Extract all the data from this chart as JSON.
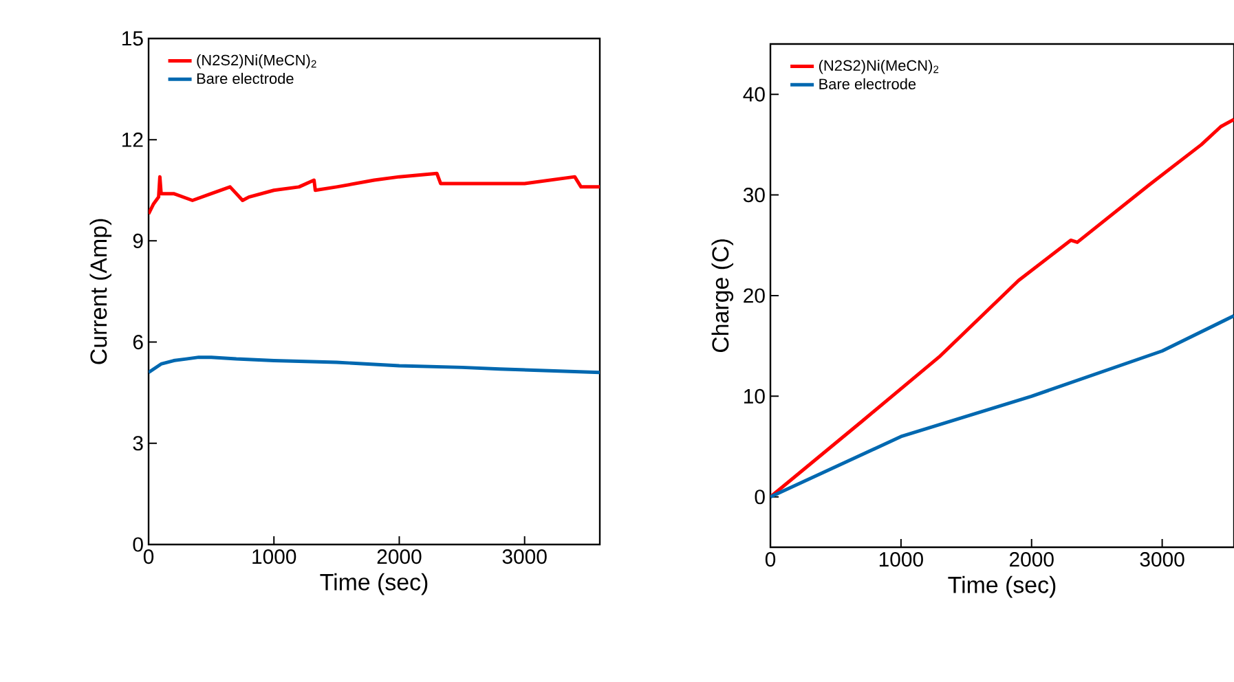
{
  "chart_data": [
    {
      "type": "line",
      "xlabel": "Time (sec)",
      "ylabel": "Current (Amp)",
      "xlim": [
        0,
        3600
      ],
      "ylim": [
        0,
        15
      ],
      "xticks": [
        0,
        1000,
        2000,
        3000
      ],
      "yticks": [
        0,
        3,
        6,
        9,
        12,
        15
      ],
      "legend": "top left",
      "series": [
        {
          "name": "(N2S2)Ni(MeCN)$_{2}$",
          "color": "#ff0000",
          "x": [
            0,
            40,
            80,
            90,
            100,
            200,
            350,
            500,
            650,
            700,
            750,
            800,
            1000,
            1200,
            1320,
            1330,
            1500,
            1800,
            2000,
            2300,
            2330,
            2600,
            3000,
            3200,
            3400,
            3450,
            3600
          ],
          "values": [
            9.8,
            10.1,
            10.3,
            10.9,
            10.4,
            10.4,
            10.2,
            10.4,
            10.6,
            10.4,
            10.2,
            10.3,
            10.5,
            10.6,
            10.8,
            10.5,
            10.6,
            10.8,
            10.9,
            11.0,
            10.7,
            10.7,
            10.7,
            10.8,
            10.9,
            10.6,
            10.6
          ]
        },
        {
          "name": "Bare electrode",
          "color": "#0068b0",
          "x": [
            0,
            100,
            200,
            300,
            400,
            500,
            700,
            1000,
            1500,
            2000,
            2500,
            2800,
            3200,
            3600
          ],
          "values": [
            5.1,
            5.35,
            5.45,
            5.5,
            5.55,
            5.55,
            5.5,
            5.45,
            5.4,
            5.3,
            5.25,
            5.2,
            5.15,
            5.1
          ]
        }
      ]
    },
    {
      "type": "line",
      "xlabel": "Time (sec)",
      "ylabel": "Charge (C)",
      "xlim": [
        0,
        3550
      ],
      "ylim": [
        -5,
        45
      ],
      "xticks": [
        0,
        1000,
        2000,
        3000
      ],
      "yticks": [
        0,
        10,
        20,
        30,
        40
      ],
      "legend": "top left",
      "series": [
        {
          "name": "(N2S2)Ni(MeCN)$_{2}$",
          "color": "#ff0000",
          "x": [
            0,
            700,
            1300,
            1900,
            2300,
            2350,
            2900,
            3300,
            3450,
            3550
          ],
          "values": [
            0,
            7.5,
            14,
            21.5,
            25.5,
            25.3,
            31,
            35,
            36.8,
            37.5
          ]
        },
        {
          "name": "Bare electrode",
          "color": "#0068b0",
          "x": [
            0,
            1000,
            2000,
            3000,
            3550
          ],
          "values": [
            0,
            6,
            10,
            14.5,
            18
          ]
        }
      ]
    }
  ]
}
